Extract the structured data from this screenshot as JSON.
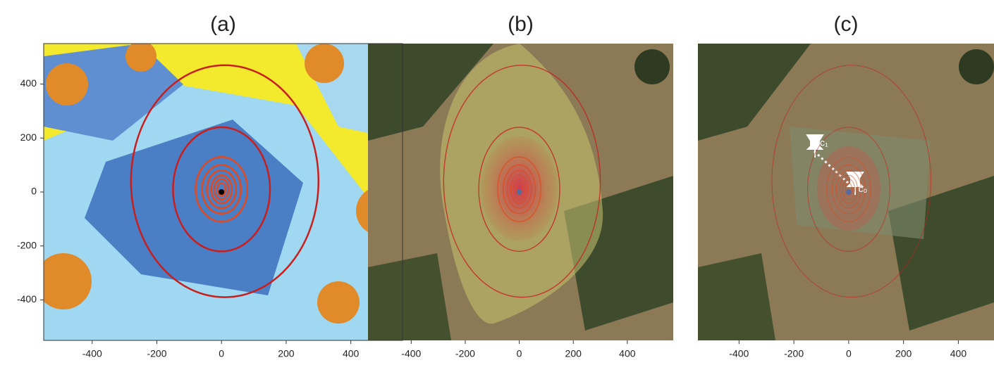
{
  "chart_data": [
    {
      "type": "image",
      "title": "(a)",
      "xlim": [
        -550,
        560
      ],
      "ylim": [
        -550,
        550
      ],
      "xticks": [
        -400,
        -200,
        0,
        200,
        400
      ],
      "yticks": [
        -400,
        -200,
        0,
        200,
        400
      ]
    },
    {
      "type": "image",
      "title": "(b)",
      "xlim": [
        -560,
        570
      ],
      "xticks": [
        -400,
        -200,
        0,
        200,
        400
      ]
    },
    {
      "type": "image",
      "title": "(c)",
      "xlim": [
        -550,
        530
      ],
      "xticks": [
        -400,
        -200,
        0,
        200,
        400
      ],
      "annotations": [
        "c₁",
        "c₀"
      ]
    }
  ]
}
